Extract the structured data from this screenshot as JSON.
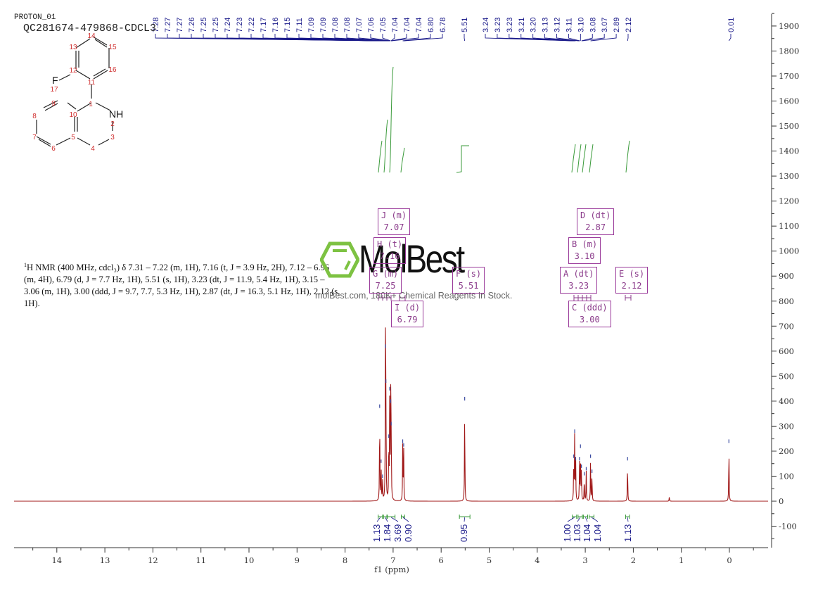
{
  "header": {
    "experiment": "PROTON_01",
    "sample": "QC281674-479868-CDCL3"
  },
  "nmr_description": {
    "prefix_sup": "1",
    "text": "H NMR (400 MHz, cdcl₃) δ 7.31 – 7.22 (m, 1H), 7.16 (t, J = 3.9 Hz, 2H), 7.12 – 6.96 (m, 4H), 6.79 (d, J = 7.7 Hz, 1H), 5.51 (s, 1H), 3.23 (dt, J = 11.9, 5.4 Hz, 1H), 3.15 – 3.06 (m, 1H), 3.00 (ddd, J = 9.7, 7.7, 5.3 Hz, 1H), 2.87 (dt, J = 16.3, 5.1 Hz, 1H), 2.12 (s, 1H)."
  },
  "watermark": {
    "brand": "MolBest",
    "tagline": "molBest.com, 180K+ Chemical Reagents In Stock.",
    "logo_color": "#7dc242"
  },
  "structure": {
    "heteroatoms": {
      "F": "F",
      "NH": "NH"
    },
    "atom_numbers": [
      "1",
      "2",
      "3",
      "4",
      "5",
      "6",
      "7",
      "8",
      "9",
      "10",
      "11",
      "12",
      "13",
      "14",
      "15",
      "16",
      "17"
    ]
  },
  "peak_boxes": [
    {
      "id": "J",
      "label": "J (m)",
      "value": "7.07"
    },
    {
      "id": "H",
      "label": "H (t)",
      "value": "7.16"
    },
    {
      "id": "G",
      "label": "G (m)",
      "value": "7.25"
    },
    {
      "id": "I",
      "label": "I (d)",
      "value": "6.79"
    },
    {
      "id": "F",
      "label": "F (s)",
      "value": "5.51"
    },
    {
      "id": "D",
      "label": "D (dt)",
      "value": "2.87"
    },
    {
      "id": "B",
      "label": "B (m)",
      "value": "3.10"
    },
    {
      "id": "A",
      "label": "A (dt)",
      "value": "3.23"
    },
    {
      "id": "E",
      "label": "E (s)",
      "value": "2.12"
    },
    {
      "id": "C",
      "label": "C (ddd)",
      "value": "3.00"
    }
  ],
  "colors": {
    "spectrum": "#a01818",
    "peak_labels": "#1a1a8a",
    "integral": "#3a9a3a",
    "peak_box": "#9a3a9a",
    "axis": "#333333"
  },
  "chart_data": {
    "type": "line",
    "title": "PROTON_01 QC281674-479868-CDCL3",
    "xlabel": "f1 (ppm)",
    "ylabel": "",
    "xlim": [
      14.9,
      -0.8
    ],
    "ylim": [
      -180,
      1950
    ],
    "x_ticks": [
      "14",
      "13",
      "12",
      "11",
      "10",
      "9",
      "8",
      "7",
      "6",
      "5",
      "4",
      "3",
      "2",
      "1",
      "0"
    ],
    "y_ticks": [
      "1900",
      "1800",
      "1700",
      "1600",
      "1500",
      "1400",
      "1300",
      "1200",
      "1100",
      "1000",
      "900",
      "800",
      "700",
      "600",
      "500",
      "400",
      "300",
      "200",
      "100",
      "0",
      "-100"
    ],
    "grid": false,
    "peak_shift_labels_group1": [
      "7.28",
      "7.27",
      "7.27",
      "7.26",
      "7.25",
      "7.25",
      "7.24",
      "7.23",
      "7.22",
      "7.17",
      "7.16",
      "7.15",
      "7.11",
      "7.09",
      "7.09",
      "7.08",
      "7.08",
      "7.07",
      "7.06",
      "7.05",
      "7.04",
      "7.04",
      "7.04",
      "6.80",
      "6.78"
    ],
    "peak_shift_labels_group2": [
      "5.51"
    ],
    "peak_shift_labels_group3": [
      "3.24",
      "3.23",
      "3.23",
      "3.21",
      "3.20",
      "3.13",
      "3.12",
      "3.11",
      "3.10",
      "3.08",
      "3.07",
      "2.89",
      "2.12"
    ],
    "peak_shift_labels_group4": [
      "0.01"
    ],
    "peaks": [
      {
        "ppm": 7.28,
        "intensity": 370
      },
      {
        "ppm": 7.25,
        "intensity": 150
      },
      {
        "ppm": 7.22,
        "intensity": 90
      },
      {
        "ppm": 7.16,
        "intensity": 610
      },
      {
        "ppm": 7.15,
        "intensity": 470
      },
      {
        "ppm": 7.09,
        "intensity": 250
      },
      {
        "ppm": 7.07,
        "intensity": 440
      },
      {
        "ppm": 7.05,
        "intensity": 390
      },
      {
        "ppm": 7.04,
        "intensity": 300
      },
      {
        "ppm": 6.8,
        "intensity": 230
      },
      {
        "ppm": 6.78,
        "intensity": 215
      },
      {
        "ppm": 5.51,
        "intensity": 400
      },
      {
        "ppm": 3.24,
        "intensity": 170
      },
      {
        "ppm": 3.22,
        "intensity": 270
      },
      {
        "ppm": 3.2,
        "intensity": 160
      },
      {
        "ppm": 3.12,
        "intensity": 160
      },
      {
        "ppm": 3.1,
        "intensity": 210
      },
      {
        "ppm": 3.08,
        "intensity": 130
      },
      {
        "ppm": 3.02,
        "intensity": 100
      },
      {
        "ppm": 2.98,
        "intensity": 120
      },
      {
        "ppm": 2.89,
        "intensity": 170
      },
      {
        "ppm": 2.86,
        "intensity": 110
      },
      {
        "ppm": 2.12,
        "intensity": 160
      },
      {
        "ppm": 1.25,
        "intensity": 18
      },
      {
        "ppm": 0.01,
        "intensity": 230
      }
    ],
    "integrals": [
      {
        "range": [
          7.31,
          7.22
        ],
        "value": "1.13"
      },
      {
        "range": [
          7.2,
          7.13
        ],
        "value": "1.84"
      },
      {
        "range": [
          7.12,
          6.96
        ],
        "value": "3.69"
      },
      {
        "range": [
          6.83,
          6.76
        ],
        "value": "0.90"
      },
      {
        "range": [
          5.62,
          5.4
        ],
        "value": "0.95"
      },
      {
        "range": [
          3.27,
          3.18
        ],
        "value": "1.00"
      },
      {
        "range": [
          3.15,
          3.06
        ],
        "value": "1.03"
      },
      {
        "range": [
          3.04,
          2.95
        ],
        "value": "1.04"
      },
      {
        "range": [
          2.92,
          2.82
        ],
        "value": "1.04"
      },
      {
        "range": [
          2.16,
          2.08
        ],
        "value": "1.13"
      }
    ],
    "multiplets": [
      {
        "label": "A",
        "type": "dt",
        "ppm": 3.23
      },
      {
        "label": "B",
        "type": "m",
        "ppm": 3.1
      },
      {
        "label": "C",
        "type": "ddd",
        "ppm": 3.0
      },
      {
        "label": "D",
        "type": "dt",
        "ppm": 2.87
      },
      {
        "label": "E",
        "type": "s",
        "ppm": 2.12
      },
      {
        "label": "F",
        "type": "s",
        "ppm": 5.51
      },
      {
        "label": "G",
        "type": "m",
        "ppm": 7.25
      },
      {
        "label": "H",
        "type": "t",
        "ppm": 7.16
      },
      {
        "label": "I",
        "type": "d",
        "ppm": 6.79
      },
      {
        "label": "J",
        "type": "m",
        "ppm": 7.07
      }
    ]
  }
}
